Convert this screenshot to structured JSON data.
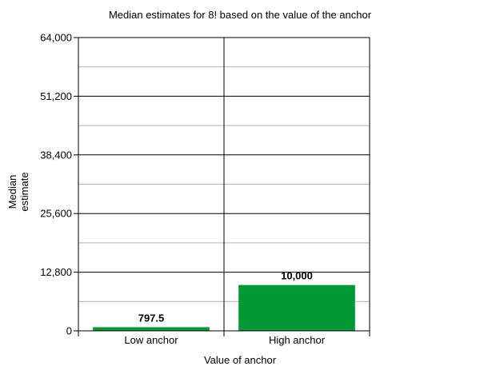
{
  "chart_data": {
    "type": "bar",
    "title": "Median estimates for 8! based on the value of the anchor",
    "xlabel": "Value of anchor",
    "ylabel_lines": [
      "Median",
      "estimate"
    ],
    "categories": [
      "Low anchor",
      "High anchor"
    ],
    "values": [
      797.5,
      10000
    ],
    "data_labels": [
      "797.5",
      "10,000"
    ],
    "ylim": [
      0,
      64000
    ],
    "yticks": [
      0,
      12800,
      25600,
      38400,
      51200,
      64000
    ],
    "ytick_labels": [
      "0",
      "12,800",
      "25,600",
      "38,400",
      "51,200",
      "64,000"
    ],
    "minor_gridlines": true,
    "bar_color": "#009933",
    "grid_color": "#b3b3b3"
  }
}
